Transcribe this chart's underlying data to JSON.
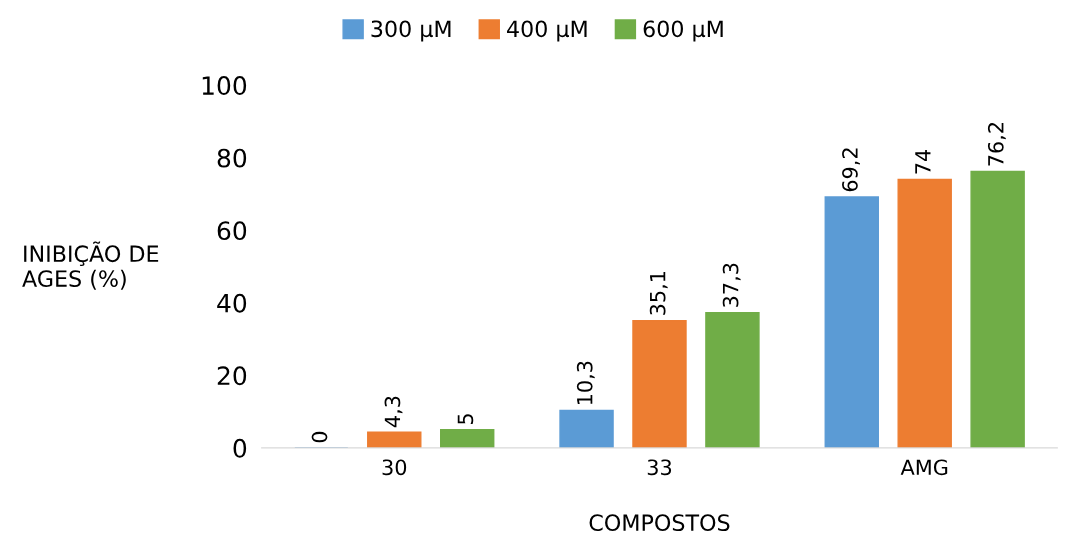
{
  "chart_data": {
    "type": "bar",
    "xlabel": "COMPOSTOS",
    "ylabel": "INIBIÇÃO DE\nAGES (%)",
    "categories": [
      "30",
      "33",
      "AMG"
    ],
    "series": [
      {
        "name": "300 µM",
        "color": "#5b9bd5",
        "values": [
          0,
          10.3,
          69.2
        ],
        "value_labels": [
          "0",
          "10,3",
          "69,2"
        ]
      },
      {
        "name": "400 µM",
        "color": "#ed7d31",
        "values": [
          4.3,
          35.1,
          74
        ],
        "value_labels": [
          "4,3",
          "35,1",
          "74"
        ]
      },
      {
        "name": "600 µM",
        "color": "#70ad47",
        "values": [
          5,
          37.3,
          76.2
        ],
        "value_labels": [
          "5",
          "37,3",
          "76,2"
        ]
      }
    ],
    "ylim": [
      0,
      100
    ],
    "yticks": [
      0,
      20,
      40,
      60,
      80,
      100
    ],
    "grid": false,
    "legend": "top"
  }
}
